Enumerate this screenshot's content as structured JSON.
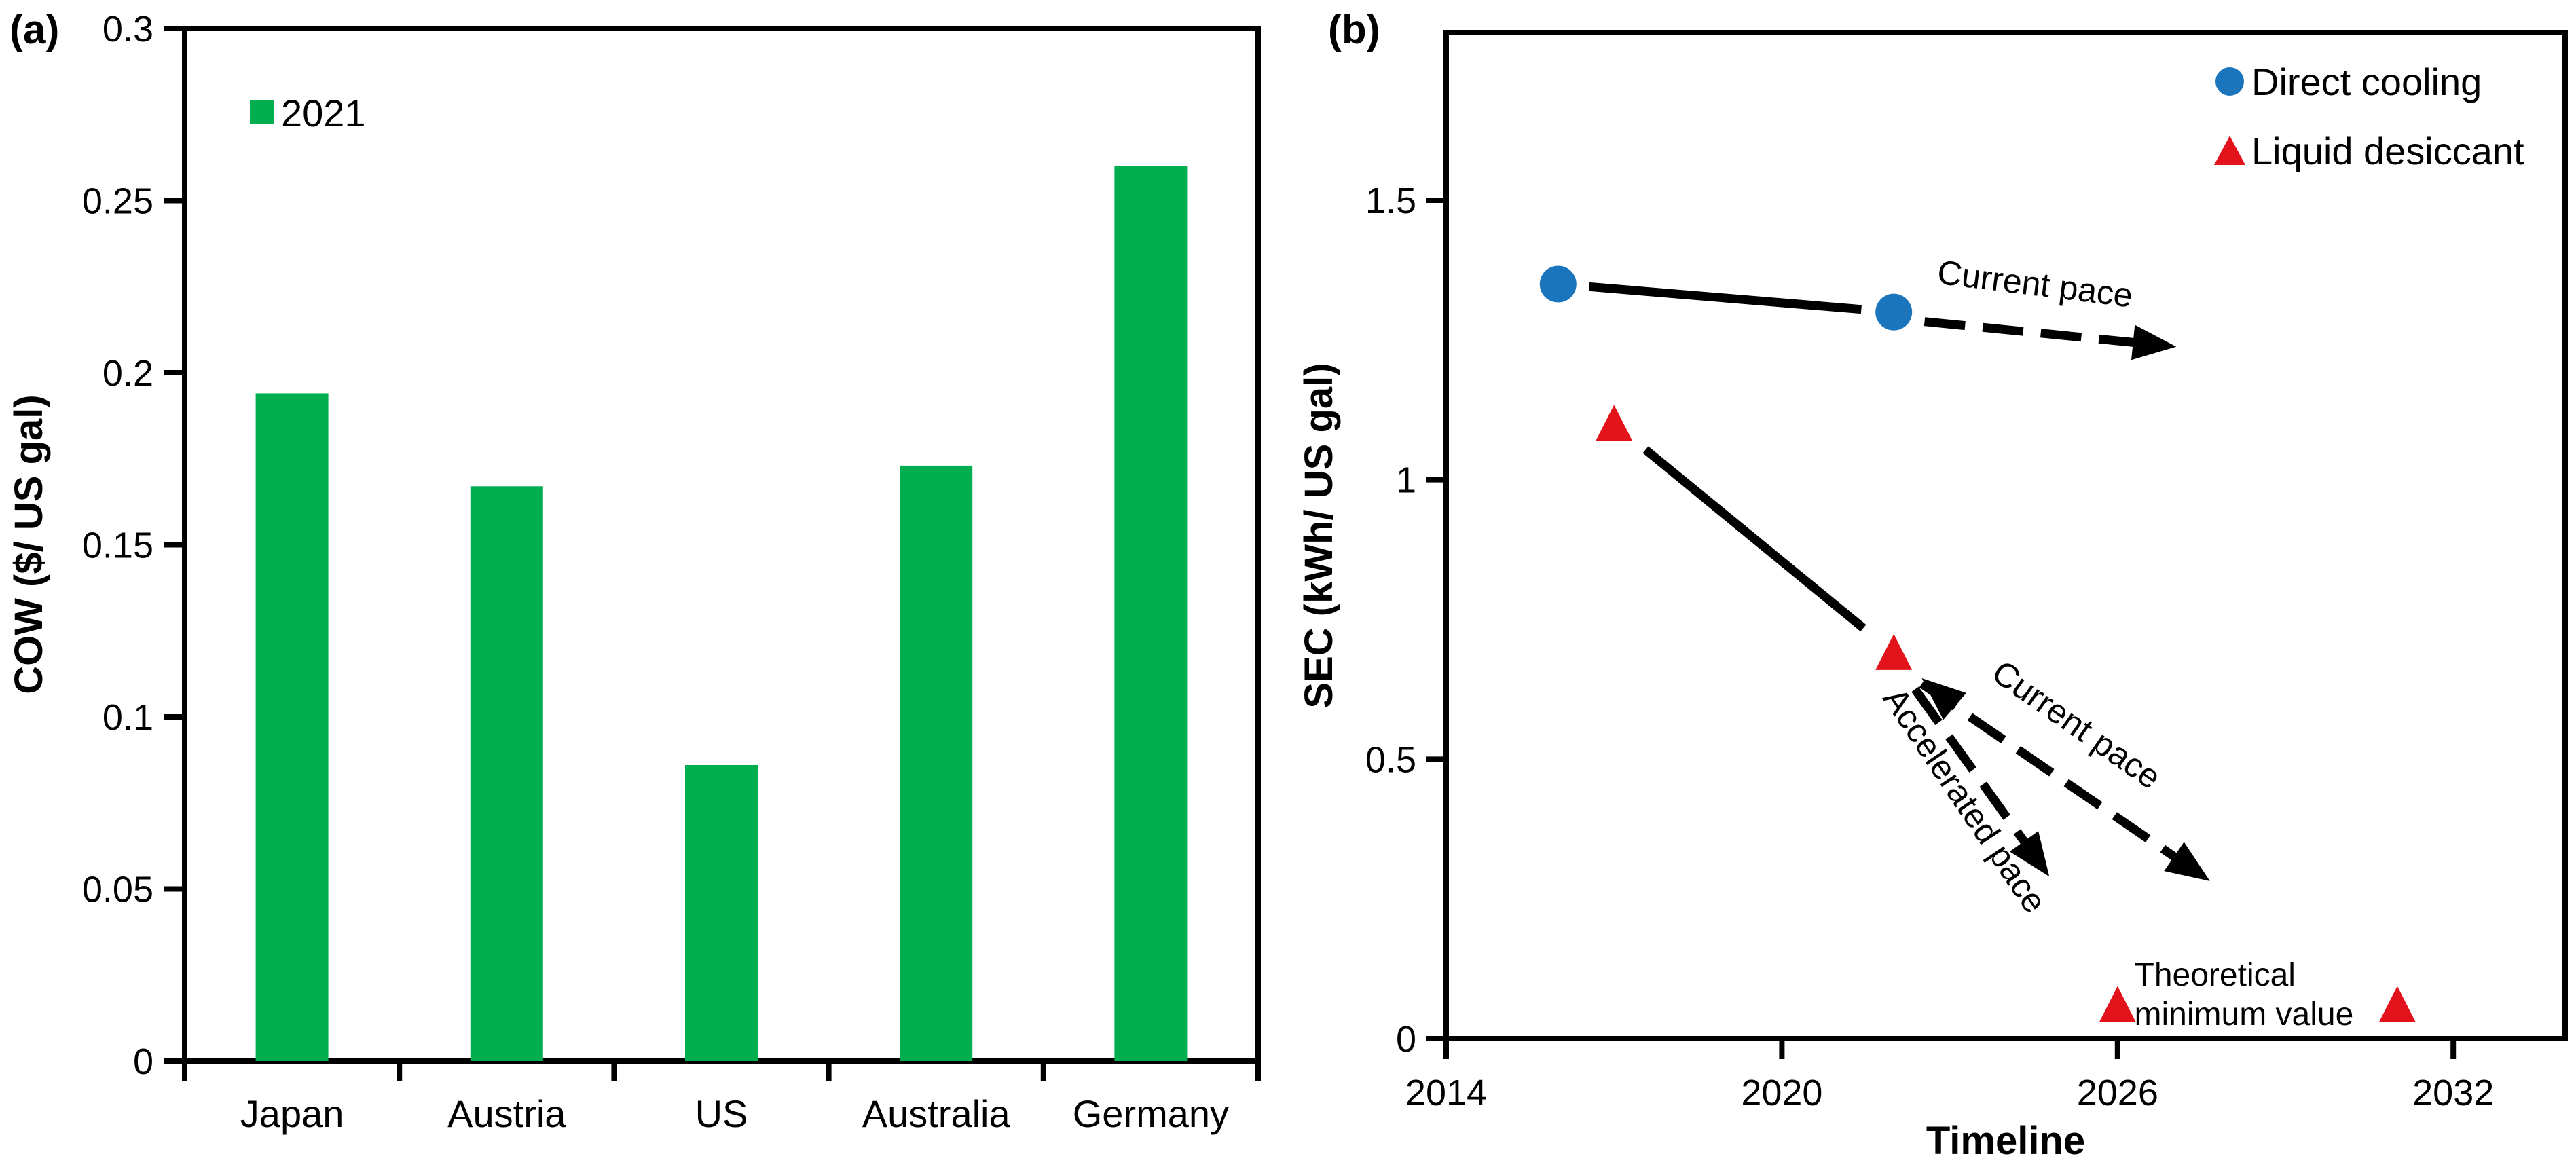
{
  "figure": {
    "panel_a": {
      "tag": "(a)"
    },
    "panel_b": {
      "tag": "(b)"
    },
    "background": "#ffffff",
    "axis_color": "#000000"
  },
  "chart_data": [
    {
      "type": "bar",
      "panel": "a",
      "title": "",
      "xlabel": "",
      "ylabel": "COW ($/ US gal)",
      "categories": [
        "Japan",
        "Austria",
        "US",
        "Australia",
        "Germany"
      ],
      "series": [
        {
          "name": "2021",
          "color": "#00AD4F",
          "values": [
            0.194,
            0.167,
            0.086,
            0.173,
            0.26
          ]
        }
      ],
      "ylim": [
        0,
        0.3
      ],
      "yticks": [
        0,
        0.05,
        0.1,
        0.15,
        0.2,
        0.25,
        0.3
      ],
      "ytick_labels": [
        "0",
        "0.05",
        "0.1",
        "0.15",
        "0.2",
        "0.25",
        "0.3"
      ],
      "grid": false,
      "legend_position": "top-left-inside"
    },
    {
      "type": "scatter",
      "panel": "b",
      "title": "",
      "xlabel": "Timeline",
      "ylabel": "SEC (kWh/ US gal)",
      "xlim": [
        2014,
        2034
      ],
      "ylim": [
        0,
        1.8
      ],
      "xticks": [
        2014,
        2020,
        2026,
        2032
      ],
      "xtick_labels": [
        "2014",
        "2020",
        "2026",
        "2032"
      ],
      "yticks": [
        0,
        0.5,
        1,
        1.5
      ],
      "ytick_labels": [
        "0",
        "0.5",
        "1",
        "1.5"
      ],
      "grid": false,
      "legend_position": "top-right-inside",
      "series": [
        {
          "name": "Direct cooling",
          "marker": "circle",
          "color": "#1B75BC",
          "points": [
            [
              2016,
              1.35
            ],
            [
              2022,
              1.3
            ]
          ],
          "connect_solid": true
        },
        {
          "name": "Liquid desiccant",
          "marker": "triangle",
          "color": "#E2131B",
          "points": [
            [
              2017,
              1.1
            ],
            [
              2022,
              0.69
            ],
            [
              2026,
              0.06
            ],
            [
              2031,
              0.06
            ]
          ],
          "connect_solid_first_two": true
        }
      ],
      "arrows": [
        {
          "name": "direct-current-pace-arrow",
          "from": [
            2022.55,
            1.283
          ],
          "to": [
            2027.05,
            1.238
          ],
          "style": "dashed"
        },
        {
          "name": "liquid-current-pace-arrow",
          "from": [
            2022.5,
            0.635
          ],
          "to": [
            2027.65,
            0.282
          ],
          "style": "dashed"
        },
        {
          "name": "liquid-accelerated-pace-arrow",
          "from": [
            2022.38,
            0.625
          ],
          "to": [
            2024.78,
            0.29
          ],
          "style": "dashed"
        },
        {
          "name": "junction-back-arrowhead",
          "from": [
            2023.05,
            0.598
          ],
          "to": [
            2022.5,
            0.645
          ],
          "style": "head-only"
        }
      ],
      "annotations": [
        {
          "text": "Current pace",
          "x": 2024.5,
          "y": 1.33,
          "rotate": 7,
          "anchor": "middle",
          "size": "ann-label"
        },
        {
          "text": "Current pace",
          "x": 2025.15,
          "y": 0.545,
          "rotate": 35,
          "anchor": "middle",
          "size": "ann-label"
        },
        {
          "text": "Accelerated pace",
          "x": 2023.1,
          "y": 0.415,
          "rotate": 56,
          "anchor": "middle",
          "size": "ann-label"
        },
        {
          "text": "Theoretical",
          "x": 2026.3,
          "y": 0.095,
          "rotate": 0,
          "anchor": "start",
          "size": "ann-small"
        },
        {
          "text": "minimum value",
          "x": 2026.3,
          "y": 0.024,
          "rotate": 0,
          "anchor": "start",
          "size": "ann-small"
        }
      ]
    }
  ]
}
